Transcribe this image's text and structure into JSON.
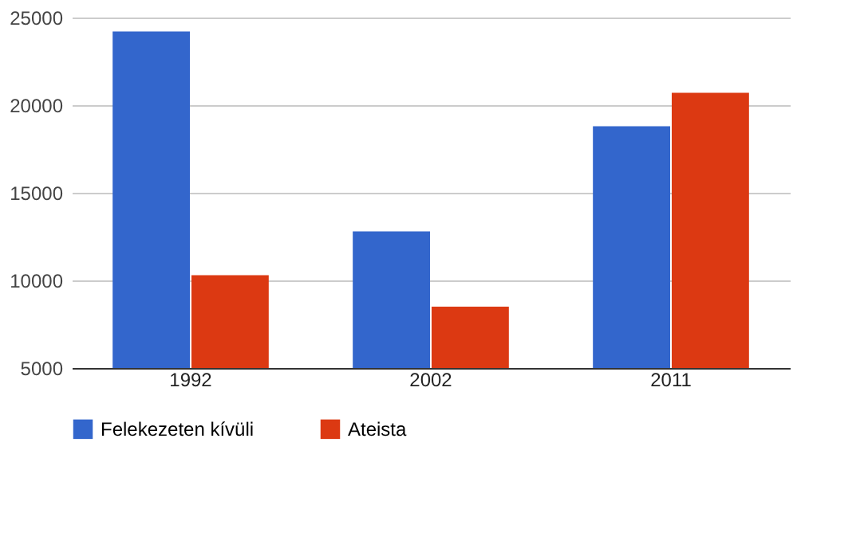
{
  "chart_data": {
    "type": "bar",
    "categories": [
      "1992",
      "2002",
      "2011"
    ],
    "series": [
      {
        "name": "Felekezeten kívüli",
        "color": "#3366cc",
        "values": [
          24200,
          12800,
          18800
        ]
      },
      {
        "name": "Ateista",
        "color": "#dc3912",
        "values": [
          10300,
          8500,
          20700
        ]
      }
    ],
    "ylim": [
      5000,
      25000
    ],
    "yticks": [
      5000,
      10000,
      15000,
      20000,
      25000
    ],
    "grid": "y",
    "legend": "bottom"
  }
}
